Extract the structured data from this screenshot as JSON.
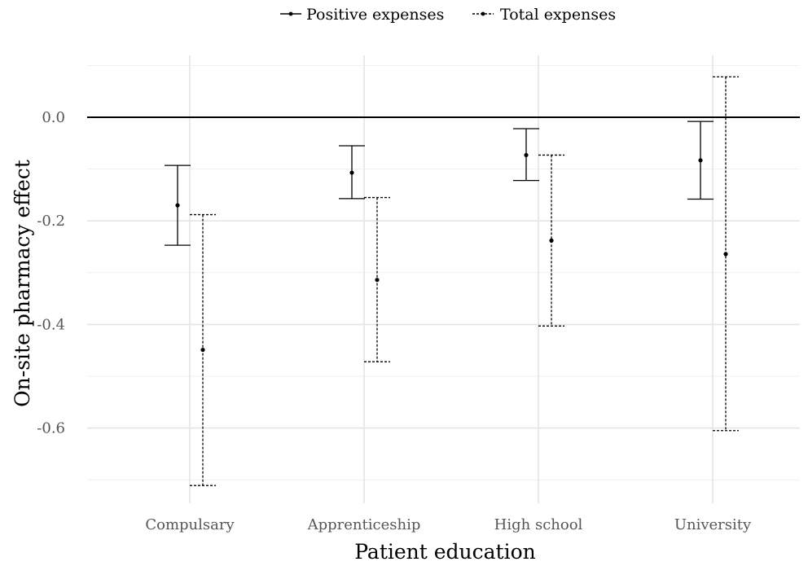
{
  "chart_data": {
    "type": "errorbar",
    "categories": [
      "Compulsary",
      "Apprenticeship",
      "High school",
      "University"
    ],
    "series": [
      {
        "name": "Positive expenses",
        "line_style": "solid",
        "estimates": [
          -0.17,
          -0.107,
          -0.073,
          -0.083
        ],
        "lower": [
          -0.247,
          -0.157,
          -0.122,
          -0.158
        ],
        "upper": [
          -0.093,
          -0.055,
          -0.022,
          -0.008
        ]
      },
      {
        "name": "Total expenses",
        "line_style": "dotted",
        "estimates": [
          -0.449,
          -0.314,
          -0.238,
          -0.264
        ],
        "lower": [
          -0.711,
          -0.472,
          -0.403,
          -0.605
        ],
        "upper": [
          -0.188,
          -0.155,
          -0.073,
          0.078
        ]
      }
    ],
    "xlabel": "Patient education",
    "ylabel": "On-site pharmacy effect",
    "ylim": [
      -0.74,
      0.12
    ],
    "yticks": [
      0.0,
      -0.2,
      -0.4,
      -0.6
    ],
    "ytick_labels": [
      "0.0",
      "-0.2",
      "-0.4",
      "-0.6"
    ],
    "reference_line": 0.0,
    "grid": true,
    "legend_position": "top"
  }
}
